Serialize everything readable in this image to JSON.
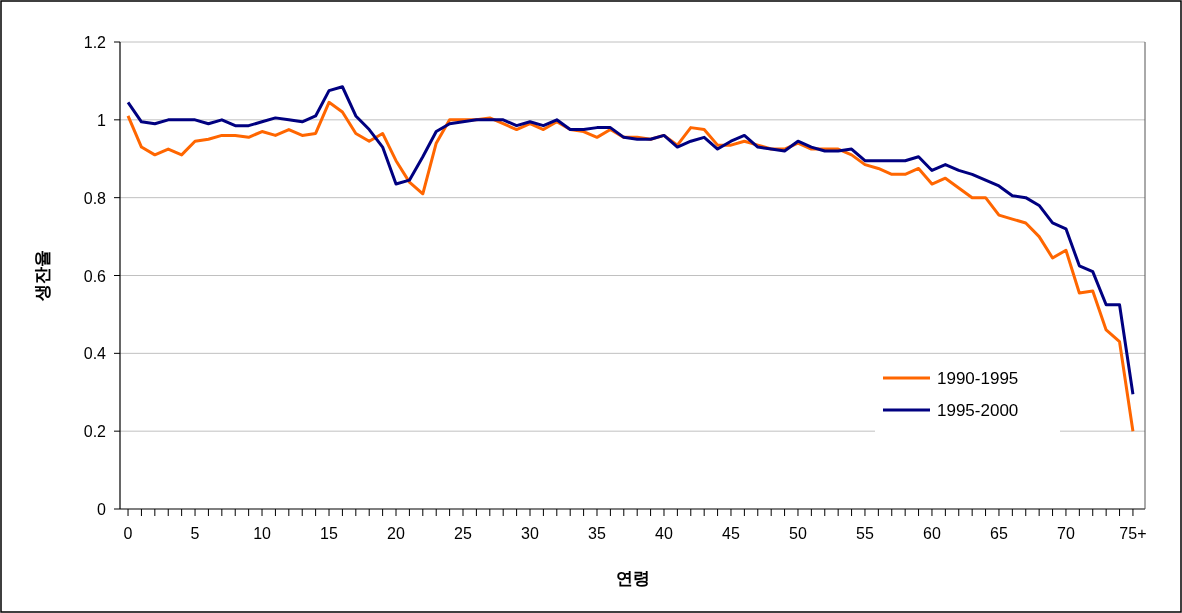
{
  "chart_data": {
    "type": "line",
    "xlabel": "연령",
    "ylabel": "생잔율",
    "categories": [
      "0",
      null,
      null,
      null,
      null,
      "5",
      null,
      null,
      null,
      null,
      "10",
      null,
      null,
      null,
      null,
      "15",
      null,
      null,
      null,
      null,
      "20",
      null,
      null,
      null,
      null,
      "25",
      null,
      null,
      null,
      null,
      "30",
      null,
      null,
      null,
      null,
      "35",
      null,
      null,
      null,
      null,
      "40",
      null,
      null,
      null,
      null,
      "45",
      null,
      null,
      null,
      null,
      "50",
      null,
      null,
      null,
      null,
      "55",
      null,
      null,
      null,
      null,
      "60",
      null,
      null,
      null,
      null,
      "65",
      null,
      null,
      null,
      null,
      "70",
      null,
      null,
      null,
      null,
      "75+"
    ],
    "series": [
      {
        "name": "1990-1995",
        "color": "#ff6600",
        "values": [
          1.01,
          0.93,
          0.91,
          0.925,
          0.91,
          0.945,
          0.95,
          0.96,
          0.96,
          0.955,
          0.97,
          0.96,
          0.975,
          0.96,
          0.965,
          1.045,
          1.02,
          0.965,
          0.945,
          0.965,
          0.895,
          0.84,
          0.81,
          0.94,
          1.0,
          1.0,
          1.0,
          1.005,
          0.99,
          0.975,
          0.99,
          0.975,
          0.995,
          0.975,
          0.97,
          0.955,
          0.975,
          0.955,
          0.955,
          0.95,
          0.96,
          0.935,
          0.98,
          0.975,
          0.935,
          0.935,
          0.945,
          0.935,
          0.925,
          0.925,
          0.94,
          0.925,
          0.925,
          0.925,
          0.91,
          0.885,
          0.875,
          0.86,
          0.86,
          0.875,
          0.835,
          0.85,
          0.825,
          0.8,
          0.8,
          0.755,
          0.745,
          0.735,
          0.7,
          0.645,
          0.665,
          0.555,
          0.56,
          0.46,
          0.43,
          0.2
        ]
      },
      {
        "name": "1995-2000",
        "color": "#000080",
        "values": [
          1.045,
          0.995,
          0.99,
          1.0,
          1.0,
          1.0,
          0.99,
          1.0,
          0.985,
          0.985,
          0.995,
          1.005,
          1.0,
          0.995,
          1.01,
          1.075,
          1.085,
          1.01,
          0.975,
          0.93,
          0.835,
          0.845,
          0.905,
          0.97,
          0.99,
          0.995,
          1.0,
          1.0,
          1.0,
          0.985,
          0.995,
          0.985,
          1.0,
          0.975,
          0.975,
          0.98,
          0.98,
          0.955,
          0.95,
          0.95,
          0.96,
          0.93,
          0.945,
          0.955,
          0.925,
          0.945,
          0.96,
          0.93,
          0.925,
          0.92,
          0.945,
          0.93,
          0.92,
          0.92,
          0.925,
          0.895,
          0.895,
          0.895,
          0.895,
          0.905,
          0.87,
          0.885,
          0.87,
          0.86,
          0.845,
          0.83,
          0.805,
          0.8,
          0.78,
          0.735,
          0.72,
          0.625,
          0.61,
          0.525,
          0.525,
          0.295
        ]
      }
    ],
    "ylim": [
      0,
      1.2
    ],
    "yticks": [
      0,
      0.2,
      0.4,
      0.6,
      0.8,
      1,
      1.2
    ],
    "grid": "y",
    "legend": "bottom right",
    "marker": "none",
    "line_style": "solid"
  }
}
